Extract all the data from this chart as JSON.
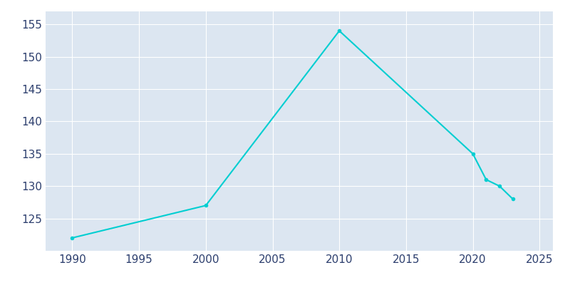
{
  "years": [
    1990,
    2000,
    2010,
    2020,
    2021,
    2022,
    2023
  ],
  "population": [
    122,
    127,
    154,
    135,
    131,
    130,
    128
  ],
  "line_color": "#00CED1",
  "marker": "o",
  "marker_size": 3,
  "background_color": "#ffffff",
  "plot_background_color": "#dce6f1",
  "grid_color": "#ffffff",
  "xlim": [
    1988,
    2026
  ],
  "ylim": [
    120,
    157
  ],
  "xticks": [
    1990,
    1995,
    2000,
    2005,
    2010,
    2015,
    2020,
    2025
  ],
  "yticks": [
    125,
    130,
    135,
    140,
    145,
    150,
    155
  ],
  "tick_color": "#2d3f6e",
  "tick_fontsize": 11
}
